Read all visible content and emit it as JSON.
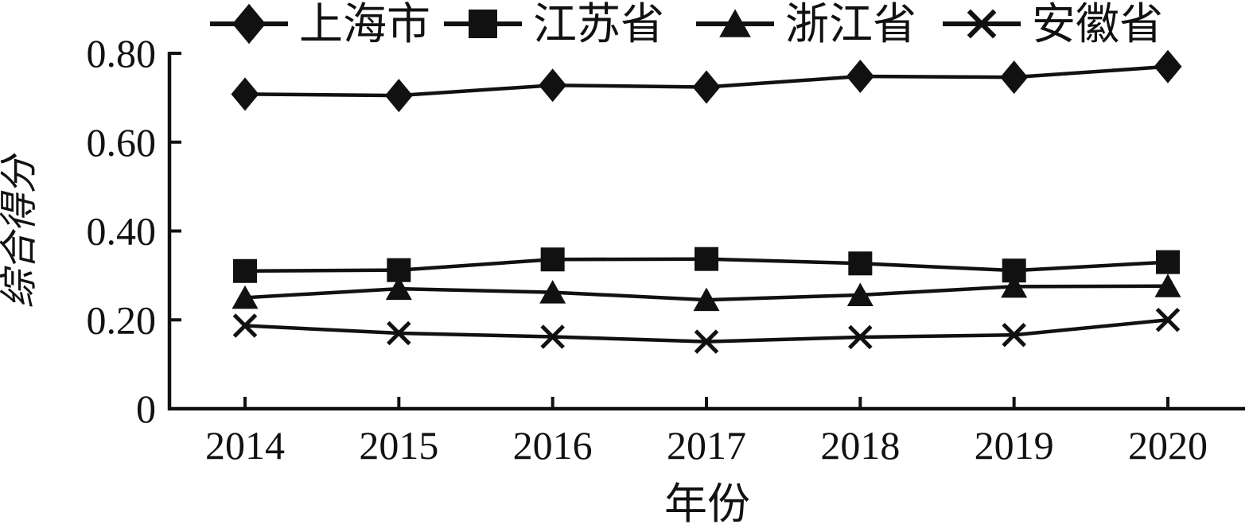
{
  "page": {
    "background_color": "#ffffff",
    "foreground_color": "#111111"
  },
  "chart_data": {
    "type": "line",
    "title": "",
    "xlabel": "年份",
    "ylabel": "综合得分",
    "x": [
      "2014",
      "2015",
      "2016",
      "2017",
      "2018",
      "2019",
      "2020"
    ],
    "ylim": [
      0,
      0.8
    ],
    "yticks": [
      0,
      0.2,
      0.4,
      0.6,
      0.8
    ],
    "ytick_labels": [
      "0",
      "0.20",
      "0.40",
      "0.60",
      "0.80"
    ],
    "grid": false,
    "legend_position": "top",
    "line_color": "#111111",
    "series": [
      {
        "id": "shanghai",
        "name": "上海市",
        "marker": "diamond",
        "values": [
          0.708,
          0.705,
          0.728,
          0.724,
          0.748,
          0.746,
          0.77
        ]
      },
      {
        "id": "jiangsu",
        "name": "江苏省",
        "marker": "square",
        "values": [
          0.31,
          0.312,
          0.336,
          0.337,
          0.327,
          0.311,
          0.33
        ]
      },
      {
        "id": "zhejiang",
        "name": "浙江省",
        "marker": "triangle",
        "values": [
          0.25,
          0.27,
          0.262,
          0.245,
          0.256,
          0.275,
          0.276
        ]
      },
      {
        "id": "anhui",
        "name": "安徽省",
        "marker": "x-cross",
        "values": [
          0.187,
          0.17,
          0.162,
          0.151,
          0.161,
          0.166,
          0.2
        ]
      }
    ]
  }
}
